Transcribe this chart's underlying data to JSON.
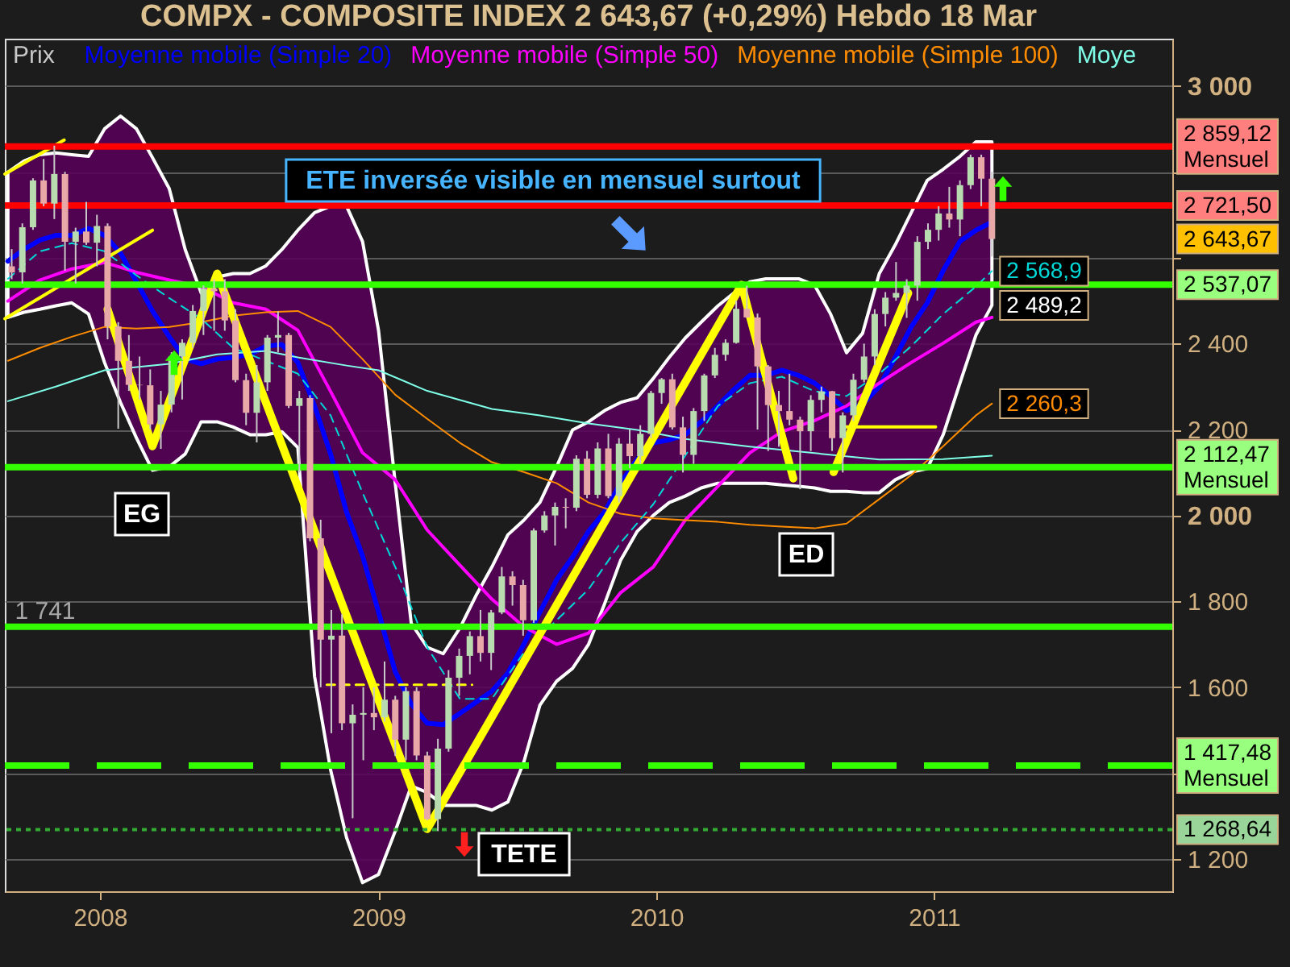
{
  "chart_data": {
    "type": "candlestick",
    "title": "COMPX - COMPOSITE INDEX    2 643,67 (+0,29%)    Hebdo  18 Mar",
    "xlim": [
      "2007-08-29",
      "2011-11-10"
    ],
    "ylim": [
      1125,
      3110
    ],
    "xticks": [
      "2008",
      "2009",
      "2010",
      "2011"
    ],
    "yticks": [
      {
        "value": 1200,
        "label": "1 200"
      },
      {
        "value": 1400,
        "label": null
      },
      {
        "value": 1600,
        "label": "1 600"
      },
      {
        "value": 1800,
        "label": "1 800"
      },
      {
        "value": 2000,
        "label": "2 000"
      },
      {
        "value": 2200,
        "label": "2 200"
      },
      {
        "value": 2400,
        "label": "2 400"
      },
      {
        "value": 2600,
        "label": null
      },
      {
        "value": 2800,
        "label": null
      },
      {
        "value": 3000,
        "label": "3 000"
      }
    ],
    "grid": "y",
    "legend": "top left",
    "series": [
      {
        "name": "Prix",
        "color": "#c8c8c8",
        "x": [
          "2007-09-07",
          "2007-09-21",
          "2007-10-05",
          "2007-10-19",
          "2007-11-02",
          "2007-11-16",
          "2007-11-30",
          "2007-12-14",
          "2007-12-28",
          "2008-01-11",
          "2008-01-25",
          "2008-02-08",
          "2008-02-22",
          "2008-03-07",
          "2008-03-21",
          "2008-04-04",
          "2008-04-18",
          "2008-05-02",
          "2008-05-16",
          "2008-05-30",
          "2008-06-13",
          "2008-06-27",
          "2008-07-11",
          "2008-07-25",
          "2008-08-08",
          "2008-08-22",
          "2008-09-05",
          "2008-09-19",
          "2008-10-03",
          "2008-10-17",
          "2008-10-31",
          "2008-11-14",
          "2008-11-28",
          "2008-12-12",
          "2008-12-26",
          "2009-01-09",
          "2009-01-23",
          "2009-02-06",
          "2009-02-20",
          "2009-03-06",
          "2009-03-20",
          "2009-04-03",
          "2009-04-17",
          "2009-05-01",
          "2009-05-15",
          "2009-05-29",
          "2009-06-12",
          "2009-06-26",
          "2009-07-10",
          "2009-07-24",
          "2009-08-07",
          "2009-08-21",
          "2009-09-04",
          "2009-09-18",
          "2009-10-02",
          "2009-10-16",
          "2009-10-30",
          "2009-11-13",
          "2009-11-27",
          "2009-12-11",
          "2009-12-25",
          "2010-01-08",
          "2010-01-22",
          "2010-02-05",
          "2010-02-19",
          "2010-03-05",
          "2010-03-19",
          "2010-04-02",
          "2010-04-16",
          "2010-04-30",
          "2010-05-14",
          "2010-05-28",
          "2010-06-11",
          "2010-06-25",
          "2010-07-09",
          "2010-07-23",
          "2010-08-06",
          "2010-08-20",
          "2010-09-03",
          "2010-09-17",
          "2010-10-01",
          "2010-10-15",
          "2010-10-29",
          "2010-11-12",
          "2010-11-26",
          "2010-12-10",
          "2010-12-24",
          "2011-01-07",
          "2011-01-21",
          "2011-02-04",
          "2011-02-18",
          "2011-03-04",
          "2011-03-18"
        ],
        "ohlc": [
          [
            2580,
            2620,
            2550,
            2566
          ],
          [
            2566,
            2680,
            2540,
            2671
          ],
          [
            2671,
            2785,
            2665,
            2780
          ],
          [
            2780,
            2830,
            2720,
            2726
          ],
          [
            2726,
            2861,
            2690,
            2795
          ],
          [
            2795,
            2800,
            2570,
            2637
          ],
          [
            2637,
            2670,
            2540,
            2661
          ],
          [
            2661,
            2730,
            2630,
            2635
          ],
          [
            2635,
            2700,
            2580,
            2674
          ],
          [
            2674,
            2680,
            2410,
            2440
          ],
          [
            2440,
            2450,
            2202,
            2360
          ],
          [
            2360,
            2420,
            2290,
            2304
          ],
          [
            2304,
            2370,
            2270,
            2303
          ],
          [
            2303,
            2340,
            2200,
            2212
          ],
          [
            2212,
            2290,
            2155,
            2258
          ],
          [
            2258,
            2380,
            2240,
            2370
          ],
          [
            2370,
            2410,
            2270,
            2402
          ],
          [
            2402,
            2490,
            2390,
            2476
          ],
          [
            2476,
            2535,
            2420,
            2528
          ],
          [
            2528,
            2550,
            2430,
            2522
          ],
          [
            2522,
            2550,
            2430,
            2454
          ],
          [
            2454,
            2480,
            2310,
            2315
          ],
          [
            2315,
            2330,
            2210,
            2239
          ],
          [
            2239,
            2350,
            2170,
            2310
          ],
          [
            2310,
            2420,
            2290,
            2414
          ],
          [
            2414,
            2475,
            2380,
            2420
          ],
          [
            2420,
            2425,
            2250,
            2255
          ],
          [
            2255,
            2290,
            2100,
            2273
          ],
          [
            2273,
            2280,
            1940,
            1947
          ],
          [
            1947,
            1990,
            1600,
            1711
          ],
          [
            1711,
            1780,
            1493,
            1720
          ],
          [
            1720,
            1770,
            1500,
            1516
          ],
          [
            1516,
            1560,
            1295,
            1536
          ],
          [
            1536,
            1600,
            1430,
            1540
          ],
          [
            1540,
            1600,
            1500,
            1530
          ],
          [
            1530,
            1660,
            1520,
            1571
          ],
          [
            1571,
            1580,
            1440,
            1478
          ],
          [
            1478,
            1600,
            1430,
            1591
          ],
          [
            1591,
            1600,
            1430,
            1441
          ],
          [
            1441,
            1450,
            1290,
            1293
          ],
          [
            1293,
            1480,
            1265,
            1457
          ],
          [
            1457,
            1640,
            1450,
            1622
          ],
          [
            1622,
            1690,
            1580,
            1673
          ],
          [
            1673,
            1730,
            1630,
            1719
          ],
          [
            1719,
            1780,
            1660,
            1680
          ],
          [
            1680,
            1780,
            1640,
            1774
          ],
          [
            1774,
            1880,
            1770,
            1858
          ],
          [
            1858,
            1870,
            1790,
            1838
          ],
          [
            1838,
            1850,
            1720,
            1756
          ],
          [
            1756,
            1970,
            1750,
            1965
          ],
          [
            1965,
            2010,
            1960,
            2000
          ],
          [
            2000,
            2030,
            1930,
            2020
          ],
          [
            2020,
            2040,
            1970,
            2018
          ],
          [
            2018,
            2140,
            2010,
            2132
          ],
          [
            2132,
            2150,
            2040,
            2048
          ],
          [
            2048,
            2170,
            2040,
            2156
          ],
          [
            2156,
            2190,
            2040,
            2045
          ],
          [
            2045,
            2180,
            2030,
            2167
          ],
          [
            2167,
            2200,
            2110,
            2138
          ],
          [
            2138,
            2210,
            2120,
            2190
          ],
          [
            2190,
            2290,
            2180,
            2285
          ],
          [
            2285,
            2320,
            2260,
            2317
          ],
          [
            2317,
            2330,
            2200,
            2205
          ],
          [
            2205,
            2230,
            2100,
            2141
          ],
          [
            2141,
            2250,
            2120,
            2243
          ],
          [
            2243,
            2330,
            2220,
            2326
          ],
          [
            2326,
            2390,
            2320,
            2374
          ],
          [
            2374,
            2410,
            2360,
            2402
          ],
          [
            2402,
            2500,
            2400,
            2481
          ],
          [
            2481,
            2535,
            2460,
            2461
          ],
          [
            2461,
            2470,
            2200,
            2347
          ],
          [
            2347,
            2350,
            2150,
            2257
          ],
          [
            2257,
            2290,
            2160,
            2243
          ],
          [
            2243,
            2330,
            2210,
            2223
          ],
          [
            2223,
            2230,
            2061,
            2196
          ],
          [
            2196,
            2280,
            2150,
            2269
          ],
          [
            2269,
            2300,
            2240,
            2289
          ],
          [
            2289,
            2290,
            2150,
            2180
          ],
          [
            2180,
            2240,
            2100,
            2233
          ],
          [
            2233,
            2330,
            2220,
            2316
          ],
          [
            2316,
            2400,
            2310,
            2370
          ],
          [
            2370,
            2480,
            2350,
            2469
          ],
          [
            2469,
            2520,
            2440,
            2507
          ],
          [
            2507,
            2590,
            2500,
            2518
          ],
          [
            2518,
            2550,
            2460,
            2535
          ],
          [
            2535,
            2650,
            2500,
            2637
          ],
          [
            2637,
            2680,
            2620,
            2665
          ],
          [
            2665,
            2720,
            2640,
            2703
          ],
          [
            2703,
            2765,
            2670,
            2689
          ],
          [
            2689,
            2780,
            2650,
            2769
          ],
          [
            2769,
            2840,
            2760,
            2834
          ],
          [
            2834,
            2840,
            2720,
            2784
          ],
          [
            2784,
            2800,
            2603,
            2643.67
          ]
        ],
        "colors": [
          "#e8a8a8",
          "#b8dcb0",
          "#b8dcb0",
          "#e8a8a8",
          "#b8dcb0",
          "#e8a8a8",
          "#b8dcb0",
          "#e8a8a8",
          "#b8dcb0",
          "#e8a8a8",
          "#e8a8a8",
          "#e8a8a8",
          "#e8a8a8",
          "#e8a8a8",
          "#b8dcb0",
          "#b8dcb0",
          "#b8dcb0",
          "#b8dcb0",
          "#b8dcb0",
          "#e8a8a8",
          "#e8a8a8",
          "#e8a8a8",
          "#e8a8a8",
          "#b8dcb0",
          "#b8dcb0",
          "#b8dcb0",
          "#e8a8a8",
          "#b8dcb0",
          "#e8a8a8",
          "#e8a8a8",
          "#b8dcb0",
          "#e8a8a8",
          "#b8dcb0",
          "#b8dcb0",
          "#e8a8a8",
          "#b8dcb0",
          "#e8a8a8",
          "#b8dcb0",
          "#e8a8a8",
          "#e8a8a8",
          "#b8dcb0",
          "#b8dcb0",
          "#b8dcb0",
          "#b8dcb0",
          "#e8a8a8",
          "#b8dcb0",
          "#b8dcb0",
          "#e8a8a8",
          "#e8a8a8",
          "#b8dcb0",
          "#b8dcb0",
          "#b8dcb0",
          "#e8a8a8",
          "#b8dcb0",
          "#e8a8a8",
          "#b8dcb0",
          "#e8a8a8",
          "#b8dcb0",
          "#e8a8a8",
          "#b8dcb0",
          "#b8dcb0",
          "#b8dcb0",
          "#e8a8a8",
          "#e8a8a8",
          "#b8dcb0",
          "#b8dcb0",
          "#b8dcb0",
          "#b8dcb0",
          "#b8dcb0",
          "#e8a8a8",
          "#e8a8a8",
          "#e8a8a8",
          "#e8a8a8",
          "#e8a8a8",
          "#e8a8a8",
          "#b8dcb0",
          "#b8dcb0",
          "#e8a8a8",
          "#b8dcb0",
          "#b8dcb0",
          "#b8dcb0",
          "#b8dcb0",
          "#b8dcb0",
          "#b8dcb0",
          "#b8dcb0",
          "#b8dcb0",
          "#b8dcb0",
          "#b8dcb0",
          "#e8a8a8",
          "#b8dcb0",
          "#b8dcb0",
          "#e8a8a8",
          "#e8a8a8"
        ],
        "value_labels": [
          null,
          null,
          null,
          null,
          null,
          null,
          null,
          null,
          null,
          null,
          null,
          null,
          null,
          null,
          null,
          null,
          null,
          null,
          null,
          null,
          null,
          null,
          null,
          null,
          null,
          null,
          null,
          null,
          null,
          null,
          null,
          null,
          null,
          null,
          null,
          null,
          null,
          null,
          null,
          null,
          null,
          null,
          null,
          null,
          null,
          null,
          null,
          null,
          null,
          null,
          null,
          null,
          null,
          null,
          null,
          null,
          null,
          null,
          null,
          null,
          null,
          null,
          null,
          null,
          null,
          null,
          null,
          null,
          null,
          null,
          null,
          null,
          null,
          null,
          null,
          null,
          null,
          null,
          null,
          null,
          null,
          null,
          null,
          null,
          null,
          null,
          null,
          null,
          null,
          null,
          null,
          null,
          "2 643,67"
        ]
      },
      {
        "name": "Moyenne mobile (Simple 20)",
        "type": "line",
        "color": "#0000ff",
        "x": [
          "2007-09-02",
          "2007-09-23",
          "2007-10-14",
          "2007-11-04",
          "2007-11-25",
          "2007-12-17",
          "2008-01-07",
          "2008-01-28",
          "2008-02-18",
          "2008-03-10",
          "2008-04-01",
          "2008-04-22",
          "2008-05-13",
          "2008-06-03",
          "2008-06-24",
          "2008-07-16",
          "2008-08-06",
          "2008-08-27",
          "2008-09-17",
          "2008-10-09",
          "2008-10-30",
          "2008-11-20",
          "2008-12-11",
          "2009-01-01",
          "2009-01-23",
          "2009-02-13",
          "2009-03-06",
          "2009-03-27",
          "2009-04-18",
          "2009-05-09",
          "2009-05-30",
          "2009-06-20",
          "2009-07-11",
          "2009-08-01",
          "2009-08-23",
          "2009-09-13",
          "2009-10-04",
          "2009-10-25",
          "2009-11-15",
          "2009-12-07",
          "2009-12-28",
          "2010-01-18",
          "2010-02-08",
          "2010-03-01",
          "2010-03-23",
          "2010-04-13",
          "2010-05-04",
          "2010-05-25",
          "2010-06-15",
          "2010-07-07",
          "2010-07-28",
          "2010-08-18",
          "2010-09-08",
          "2010-09-29",
          "2010-10-21",
          "2010-11-11",
          "2010-12-02",
          "2010-12-23",
          "2011-01-13",
          "2011-02-04",
          "2011-02-25",
          "2011-03-18"
        ],
        "values": [
          2592,
          2619,
          2641,
          2652,
          2652,
          2668,
          2652,
          2611,
          2544,
          2476,
          2416,
          2364,
          2353,
          2364,
          2368,
          2375,
          2394,
          2398,
          2356,
          2255,
          2143,
          2008,
          1906,
          1775,
          1636,
          1561,
          1516,
          1513,
          1539,
          1565,
          1591,
          1633,
          1700,
          1775,
          1850,
          1903,
          1963,
          2008,
          2075,
          2131,
          2169,
          2176,
          2188,
          2218,
          2255,
          2293,
          2326,
          2326,
          2338,
          2326,
          2308,
          2278,
          2244,
          2259,
          2300,
          2368,
          2439,
          2495,
          2570,
          2638,
          2664,
          2683
        ],
        "upper": [
          2799,
          2825,
          2840,
          2844,
          2840,
          2836,
          2900,
          2930,
          2900,
          2833,
          2761,
          2619,
          2518,
          2555,
          2563,
          2563,
          2581,
          2619,
          2664,
          2705,
          2720,
          2720,
          2638,
          2431,
          2075,
          1749,
          1693,
          1678,
          1738,
          1813,
          1880,
          1955,
          1989,
          2030,
          2113,
          2199,
          2218,
          2244,
          2263,
          2274,
          2319,
          2368,
          2413,
          2450,
          2488,
          2518,
          2544,
          2551,
          2551,
          2551,
          2536,
          2469,
          2379,
          2424,
          2563,
          2630,
          2705,
          2780,
          2806,
          2836,
          2870,
          2870
        ],
        "lower": [
          2461,
          2473,
          2480,
          2488,
          2495,
          2469,
          2356,
          2263,
          2180,
          2105,
          2113,
          2143,
          2218,
          2218,
          2206,
          2188,
          2188,
          2195,
          2158,
          1625,
          1408,
          1250,
          1145,
          1164,
          1265,
          1370,
          1355,
          1325,
          1325,
          1325,
          1314,
          1333,
          1426,
          1558,
          1614,
          1644,
          1700,
          1794,
          1895,
          1963,
          2000,
          2030,
          2045,
          2064,
          2075,
          2075,
          2075,
          2075,
          2071,
          2068,
          2064,
          2056,
          2056,
          2053,
          2053,
          2083,
          2101,
          2109,
          2188,
          2308,
          2420,
          2489.2
        ]
      },
      {
        "name": "Moyenne mobile (Simple 50)",
        "type": "line",
        "color": "#ff00ff",
        "x": [
          "2007-09-02",
          "2007-10-14",
          "2007-11-25",
          "2008-01-07",
          "2008-02-18",
          "2008-04-01",
          "2008-05-13",
          "2008-06-24",
          "2008-08-06",
          "2008-09-17",
          "2008-10-30",
          "2008-12-11",
          "2009-01-23",
          "2009-03-06",
          "2009-04-18",
          "2009-05-30",
          "2009-07-11",
          "2009-08-23",
          "2009-10-04",
          "2009-11-15",
          "2009-12-28",
          "2010-02-08",
          "2010-03-23",
          "2010-05-04",
          "2010-06-15",
          "2010-07-28",
          "2010-09-08",
          "2010-10-21",
          "2010-12-02",
          "2011-01-13",
          "2011-02-25",
          "2011-03-18"
        ],
        "values": [
          2499,
          2548,
          2574,
          2589,
          2566,
          2548,
          2533,
          2495,
          2480,
          2431,
          2289,
          2146,
          2083,
          1966,
          1884,
          1805,
          1741,
          1700,
          1726,
          1820,
          1880,
          1989,
          2068,
          2146,
          2195,
          2221,
          2255,
          2308,
          2356,
          2401,
          2450,
          2461
        ]
      },
      {
        "name": "Moyenne mobile (Simple 100)",
        "type": "line",
        "color": "#ff8c00",
        "x": [
          "2007-09-02",
          "2007-10-14",
          "2007-11-25",
          "2008-01-07",
          "2008-02-18",
          "2008-04-01",
          "2008-05-13",
          "2008-06-24",
          "2008-08-06",
          "2008-09-17",
          "2008-10-30",
          "2008-12-11",
          "2009-01-23",
          "2009-03-06",
          "2009-04-18",
          "2009-05-30",
          "2009-07-11",
          "2009-08-23",
          "2009-10-04",
          "2009-11-15",
          "2009-12-28",
          "2010-02-08",
          "2010-03-23",
          "2010-05-04",
          "2010-06-15",
          "2010-07-28",
          "2010-09-08",
          "2010-10-21",
          "2010-12-02",
          "2011-01-13",
          "2011-02-25",
          "2011-03-18"
        ],
        "values": [
          2360,
          2390,
          2416,
          2439,
          2435,
          2439,
          2450,
          2465,
          2473,
          2476,
          2439,
          2364,
          2281,
          2225,
          2169,
          2124,
          2101,
          2075,
          2030,
          2004,
          1993,
          1989,
          1985,
          1978,
          1974,
          1970,
          1981,
          2038,
          2094,
          2161,
          2233,
          2260.3
        ],
        "value_labels": [
          null,
          null,
          null,
          null,
          null,
          null,
          null,
          null,
          null,
          null,
          null,
          null,
          null,
          null,
          null,
          null,
          null,
          null,
          null,
          null,
          null,
          null,
          null,
          null,
          null,
          null,
          null,
          null,
          null,
          null,
          null,
          "2 260,3"
        ]
      },
      {
        "name": "Moye",
        "type": "line",
        "color": "#7fffe8",
        "x": [
          "2007-09-02",
          "2007-11-04",
          "2008-01-07",
          "2008-04-01",
          "2008-06-03",
          "2008-08-06",
          "2008-09-17",
          "2008-11-20",
          "2009-01-01",
          "2009-03-06",
          "2009-05-30",
          "2009-08-01",
          "2009-10-04",
          "2009-12-07",
          "2010-02-08",
          "2010-05-04",
          "2010-07-28",
          "2010-10-21",
          "2011-01-13",
          "2011-03-18"
        ],
        "values": [
          2266,
          2300,
          2338,
          2353,
          2375,
          2383,
          2368,
          2349,
          2338,
          2290,
          2248,
          2233,
          2214,
          2199,
          2178,
          2160,
          2145,
          2130,
          2131,
          2139
        ]
      },
      {
        "type": "line",
        "color": "#00d8d8",
        "line_style": "dashed",
        "x": [
          "2007-09-02",
          "2007-10-14",
          "2007-11-25",
          "2008-01-07",
          "2008-02-18",
          "2008-04-01",
          "2008-05-13",
          "2008-06-24",
          "2008-08-06",
          "2008-09-17",
          "2008-10-30",
          "2008-12-11",
          "2009-01-23",
          "2009-03-06",
          "2009-04-18",
          "2009-05-30",
          "2009-07-11",
          "2009-08-23",
          "2009-10-04",
          "2009-11-15",
          "2009-12-28",
          "2010-02-08",
          "2010-03-23",
          "2010-05-04",
          "2010-06-15",
          "2010-07-28",
          "2010-09-08",
          "2010-10-21",
          "2010-12-02",
          "2011-01-13",
          "2011-02-25",
          "2011-03-18"
        ],
        "values": [
          2551,
          2615,
          2634,
          2615,
          2559,
          2506,
          2458,
          2390,
          2360,
          2330,
          2233,
          2053,
          1880,
          1693,
          1573,
          1573,
          1681,
          1756,
          1828,
          1936,
          2026,
          2139,
          2255,
          2308,
          2323,
          2289,
          2278,
          2330,
          2394,
          2469,
          2533,
          2568.9
        ],
        "value_labels": [
          null,
          null,
          null,
          null,
          null,
          null,
          null,
          null,
          null,
          null,
          null,
          null,
          null,
          null,
          null,
          null,
          null,
          null,
          null,
          null,
          null,
          null,
          null,
          null,
          null,
          null,
          null,
          null,
          null,
          null,
          null,
          "2 568,9"
        ]
      },
      {
        "type": "line",
        "color": "#ffff00",
        "x": [
          "2008-01-11",
          "2008-03-10",
          "2008-06-03",
          "2009-03-06",
          "2010-04-23",
          "2010-06-30"
        ],
        "values": [
          2480,
          2161,
          2563,
          1270,
          2537,
          2086
        ]
      },
      {
        "type": "line",
        "color": "#ffff00",
        "x": [
          "2010-08-22",
          "2010-11-28"
        ],
        "values": [
          2101,
          2518
        ]
      },
      {
        "type": "line",
        "color": "#ffff00",
        "x": [
          "2007-08-29",
          "2007-11-15"
        ],
        "values": [
          2795,
          2874
        ]
      },
      {
        "type": "line",
        "color": "#ffff00",
        "x": [
          "2007-08-29",
          "2008-03-10"
        ],
        "values": [
          2458,
          2664
        ]
      },
      {
        "type": "line",
        "color": "#ffff00",
        "x": [
          "2010-09-04",
          "2011-01-03"
        ],
        "values": [
          2206,
          2206
        ]
      },
      {
        "type": "line",
        "color": "#ffff00",
        "line_style": "dashed",
        "x": [
          "2008-10-25",
          "2009-05-04"
        ],
        "values": [
          1606,
          1606
        ]
      }
    ],
    "ref_lines": [
      {
        "axis": "y",
        "value": 2859.12,
        "label": "2 859,12\nMensuel",
        "color": "#ff0000"
      },
      {
        "axis": "y",
        "value": 2721.5,
        "label": "2 721,50",
        "color": "#ff0000"
      },
      {
        "axis": "y",
        "value": 2537.07,
        "label": "2 537,07",
        "color": "#33ff00"
      },
      {
        "axis": "y",
        "value": 2112.47,
        "label": "2 112,47\nMensuel",
        "color": "#33ff00"
      },
      {
        "axis": "y",
        "value": 1741,
        "color": "#33ff00"
      },
      {
        "axis": "y",
        "value": 1417.48,
        "label": "1 417,48\nMensuel",
        "color": "#33ff00",
        "line_style": "dashed"
      },
      {
        "axis": "y",
        "value": 1268.64,
        "label": "1 268,64",
        "color": "#33aa33",
        "line_style": "dotted"
      }
    ],
    "annotations": [
      "ETE inversée visible en mensuel surtout",
      "EG",
      "ED",
      "TETE",
      "1 741",
      {
        "text": "2 489,2",
        "x": "2011-03-18",
        "y": 2489.2
      }
    ]
  }
}
